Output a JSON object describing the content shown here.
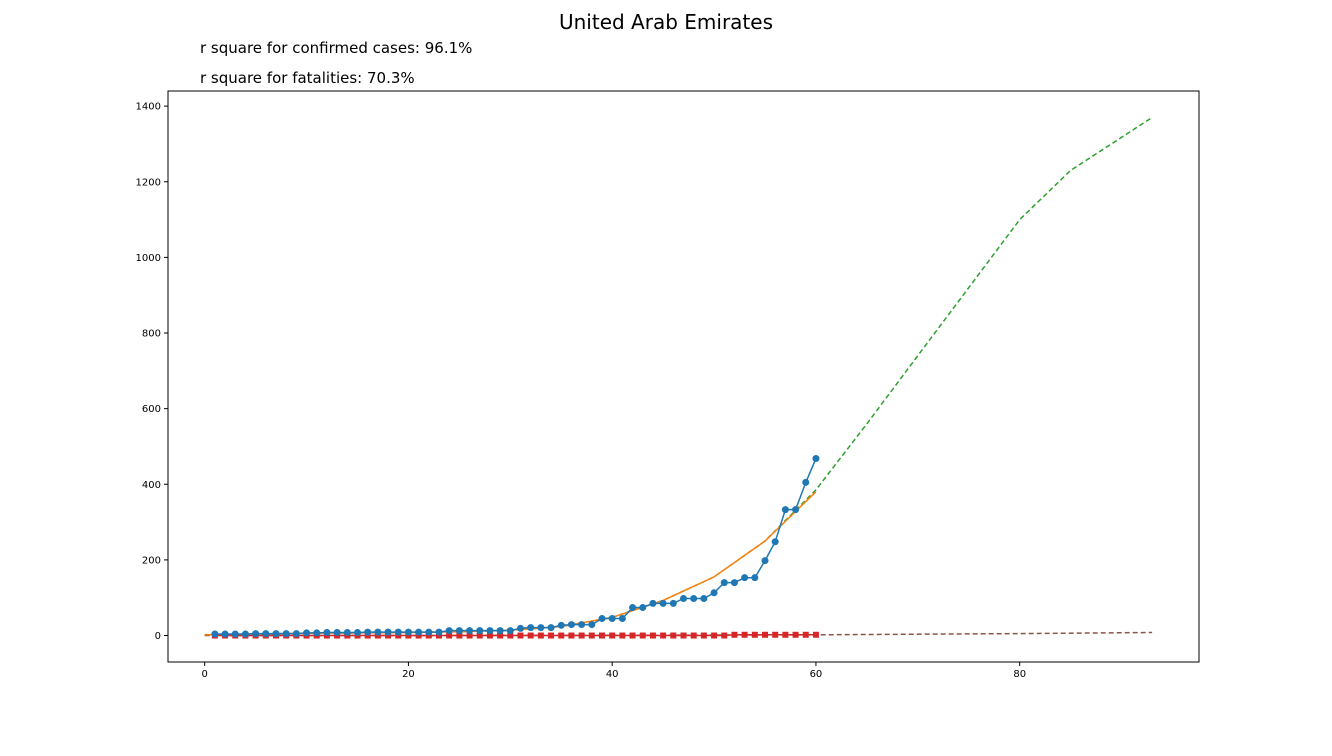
{
  "chart_data": {
    "type": "line",
    "title": "United Arab Emirates",
    "annotations": [
      "r square for confirmed cases: 96.1%",
      "r square for fatalities: 70.3%"
    ],
    "xlabel": "",
    "ylabel": "",
    "xlim": [
      -3.6,
      97.6
    ],
    "ylim": [
      -70,
      1440
    ],
    "xticks": [
      0,
      20,
      40,
      60,
      80
    ],
    "yticks": [
      0,
      200,
      400,
      600,
      800,
      1000,
      1200,
      1400
    ],
    "grid": false,
    "series": [
      {
        "role": "confirmed",
        "color": "#1f77b4",
        "marker": "circle",
        "x": [
          1,
          2,
          3,
          4,
          5,
          6,
          7,
          8,
          9,
          10,
          11,
          12,
          13,
          14,
          15,
          16,
          17,
          18,
          19,
          20,
          21,
          22,
          23,
          24,
          25,
          26,
          27,
          28,
          29,
          30,
          31,
          32,
          33,
          34,
          35,
          36,
          37,
          38,
          39,
          40,
          41,
          42,
          43,
          44,
          45,
          46,
          47,
          48,
          49,
          50,
          51,
          52,
          53,
          54,
          55,
          56,
          57,
          58,
          59,
          60
        ],
        "values": [
          4,
          4,
          4,
          4,
          5,
          5,
          5,
          5,
          5,
          7,
          7,
          8,
          8,
          8,
          8,
          9,
          9,
          9,
          9,
          9,
          9,
          9,
          9,
          13,
          13,
          13,
          13,
          13,
          13,
          13,
          19,
          21,
          21,
          21,
          27,
          29,
          29,
          29,
          45,
          45,
          45,
          74,
          74,
          85,
          85,
          85,
          98,
          98,
          98,
          113,
          140,
          140,
          153,
          153,
          198,
          248,
          333,
          333,
          405,
          468
        ]
      },
      {
        "role": "confirmed-fit",
        "color": "#ff7f0e",
        "style": "solid",
        "x": [
          0,
          5,
          10,
          15,
          20,
          25,
          30,
          35,
          40,
          45,
          50,
          55,
          60
        ],
        "values": [
          2,
          4,
          6,
          7,
          8,
          10,
          14,
          24,
          48,
          93,
          155,
          250,
          380
        ]
      },
      {
        "role": "confirmed-projection",
        "color": "#2ca02c",
        "style": "dashed",
        "x": [
          0,
          5,
          10,
          15,
          20,
          25,
          30,
          35,
          40,
          45,
          50,
          55,
          60,
          65,
          70,
          75,
          80,
          85,
          93
        ],
        "values": [
          2,
          4,
          6,
          7,
          8,
          10,
          14,
          24,
          48,
          93,
          155,
          250,
          385,
          560,
          740,
          920,
          1100,
          1230,
          1370
        ]
      },
      {
        "role": "fatalities",
        "color": "#d62728",
        "marker": "square",
        "x": [
          1,
          2,
          3,
          4,
          5,
          6,
          7,
          8,
          9,
          10,
          11,
          12,
          13,
          14,
          15,
          16,
          17,
          18,
          19,
          20,
          21,
          22,
          23,
          24,
          25,
          26,
          27,
          28,
          29,
          30,
          31,
          32,
          33,
          34,
          35,
          36,
          37,
          38,
          39,
          40,
          41,
          42,
          43,
          44,
          45,
          46,
          47,
          48,
          49,
          50,
          51,
          52,
          53,
          54,
          55,
          56,
          57,
          58,
          59,
          60
        ],
        "values": [
          0,
          0,
          0,
          0,
          0,
          0,
          0,
          0,
          0,
          0,
          0,
          0,
          0,
          0,
          0,
          0,
          0,
          0,
          0,
          0,
          0,
          0,
          0,
          0,
          0,
          0,
          0,
          0,
          0,
          0,
          0,
          0,
          0,
          0,
          0,
          0,
          0,
          0,
          0,
          0,
          0,
          0,
          0,
          0,
          0,
          0,
          0,
          0,
          0,
          0,
          0,
          2,
          2,
          2,
          2,
          2,
          2,
          2,
          2,
          2
        ]
      },
      {
        "role": "fatalities-fit",
        "color": "#8c564b",
        "style": "dashed",
        "x": [
          0,
          20,
          40,
          60,
          80,
          93
        ],
        "values": [
          0,
          0,
          0.5,
          2,
          5,
          8
        ]
      }
    ]
  }
}
